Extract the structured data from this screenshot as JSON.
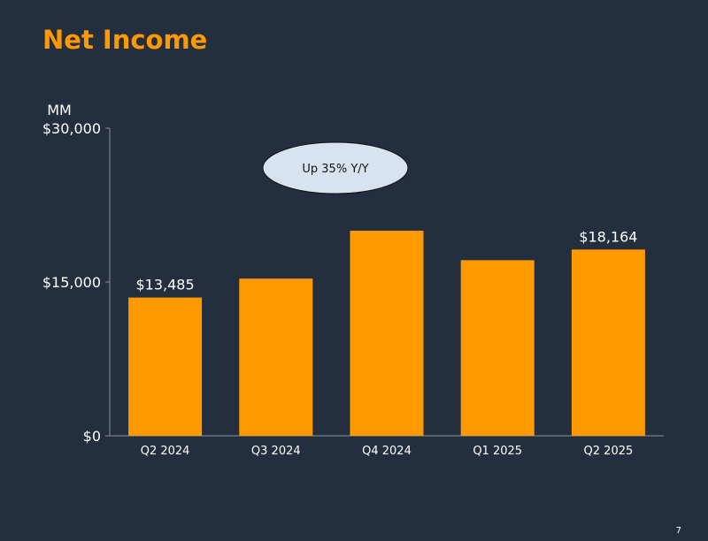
{
  "slide": {
    "title": "Net Income",
    "page_number": "7"
  },
  "colors": {
    "background": "#232f3e",
    "accent": "#ff9900",
    "bar": "#ff9900",
    "axis": "#8a929c",
    "callout_fill": "#d7e3f1",
    "text": "#ffffff"
  },
  "chart_data": {
    "type": "bar",
    "unit_label": "MM",
    "categories": [
      "Q2 2024",
      "Q3 2024",
      "Q4 2024",
      "Q1 2025",
      "Q2 2025"
    ],
    "values": [
      13485,
      15328,
      20004,
      17127,
      18164
    ],
    "data_labels": [
      "$13,485",
      "",
      "",
      "",
      "$18,164"
    ],
    "ylim": [
      0,
      30000
    ],
    "y_ticks": [
      {
        "value": 0,
        "label": "$0"
      },
      {
        "value": 15000,
        "label": "$15,000"
      },
      {
        "value": 30000,
        "label": "$30,000"
      }
    ],
    "grid": false,
    "callout": {
      "text": "Up 35% Y/Y",
      "anchor_category": "Q4 2024"
    }
  }
}
